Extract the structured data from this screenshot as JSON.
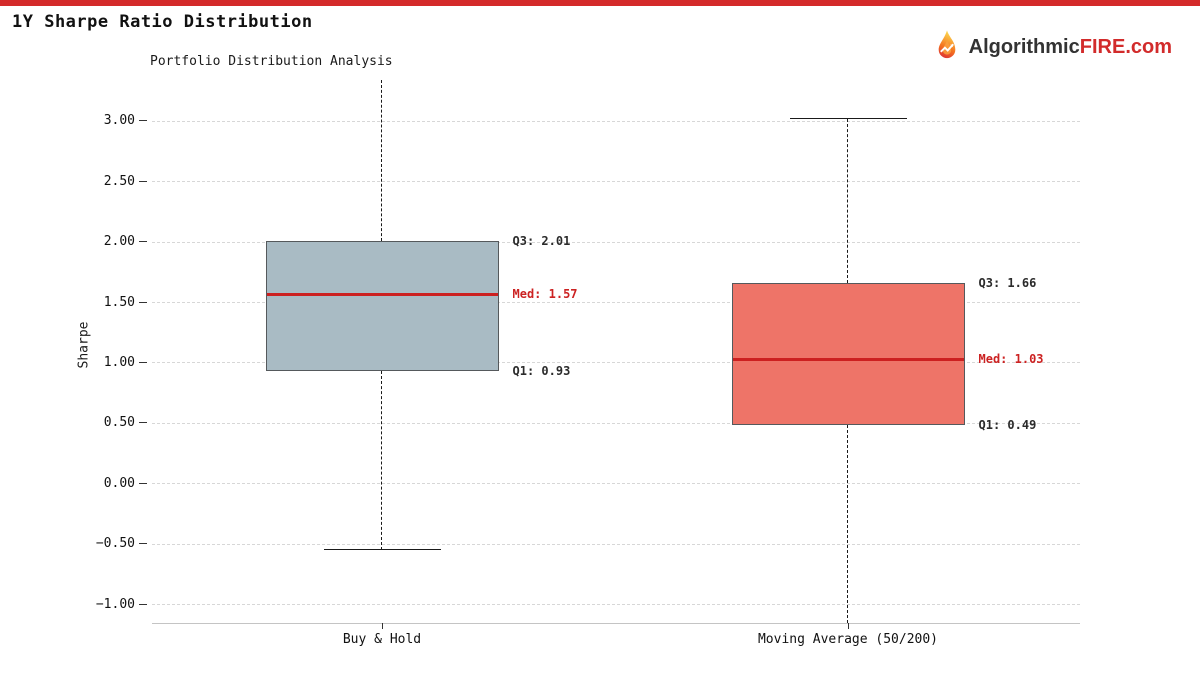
{
  "page": {
    "title": "1Y Sharpe Ratio Distribution",
    "top_bar_color": "#d42a2a"
  },
  "branding": {
    "icon": "flame-icon",
    "name_prefix": "Algorithmic",
    "name_highlight": "FIRE",
    "name_suffix": ".com",
    "prefix_color": "#333333",
    "highlight_color": "#d22b2b"
  },
  "chart_data": {
    "type": "box",
    "title": "Portfolio Distribution Analysis",
    "ylabel": "Sharpe",
    "grid": true,
    "ylim_view": [
      -1.15,
      3.34
    ],
    "yticks": [
      {
        "value": 3.0,
        "label": "3.00"
      },
      {
        "value": 2.5,
        "label": "2.50"
      },
      {
        "value": 2.0,
        "label": "2.00"
      },
      {
        "value": 1.5,
        "label": "1.50"
      },
      {
        "value": 1.0,
        "label": "1.00"
      },
      {
        "value": 0.5,
        "label": "0.50"
      },
      {
        "value": 0.0,
        "label": "0.00"
      },
      {
        "value": -0.5,
        "label": "−0.50"
      },
      {
        "value": -1.0,
        "label": "−1.00"
      }
    ],
    "categories": [
      "Buy & Hold",
      "Moving Average (50/200)"
    ],
    "median_color": "#cc2020",
    "annotation_color": "#2b2b2b",
    "annotation_median_color": "#cc2222",
    "series": [
      {
        "name": "Buy & Hold",
        "q1": 0.93,
        "median": 1.57,
        "q3": 2.01,
        "whisker_low": -0.55,
        "whisker_high": 3.33,
        "whisker_low_clipped": false,
        "whisker_high_clipped": true,
        "box_color": "#a9bbc4",
        "labels": {
          "q3": "Q3: 2.01",
          "med": "Med: 1.57",
          "q1": "Q1: 0.93"
        }
      },
      {
        "name": "Moving Average (50/200)",
        "q1": 0.49,
        "median": 1.03,
        "q3": 1.66,
        "whisker_low": -1.15,
        "whisker_high": 3.02,
        "whisker_low_clipped": true,
        "whisker_high_clipped": false,
        "box_color": "#ee7468",
        "labels": {
          "q3": "Q3: 1.66",
          "med": "Med: 1.03",
          "q1": "Q1: 0.49"
        }
      }
    ]
  }
}
